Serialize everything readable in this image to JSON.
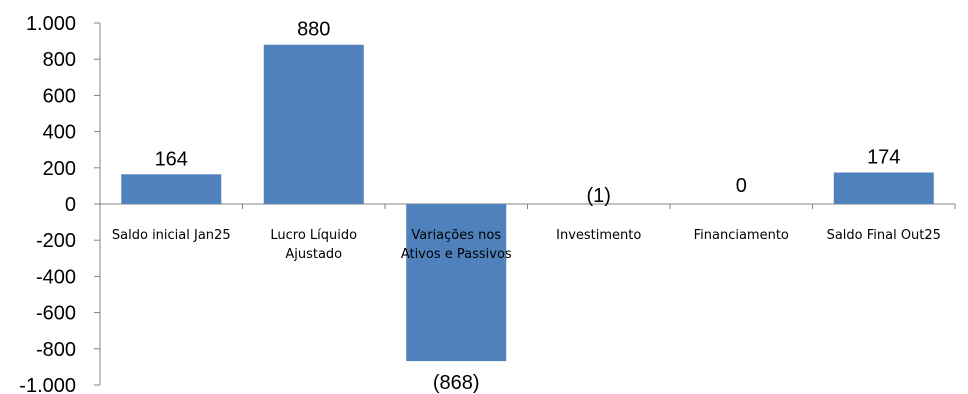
{
  "chart_data": {
    "type": "bar",
    "categories": [
      [
        "Saldo inicial  Jan25"
      ],
      [
        "Lucro Líquido",
        "Ajustado"
      ],
      [
        "Variações nos",
        "Ativos e Passivos"
      ],
      [
        "Investimento"
      ],
      [
        "Financiamento"
      ],
      [
        "Saldo Final Out25"
      ]
    ],
    "values": [
      164,
      880,
      -868,
      -1,
      0,
      174
    ],
    "data_labels": [
      "164",
      "880",
      "(868)",
      "(1)",
      "0",
      "174"
    ],
    "yticks": [
      "1.000",
      "800",
      "600",
      "400",
      "200",
      "0",
      "-200",
      "-400",
      "-600",
      "-800",
      "-1.000"
    ],
    "ytick_values": [
      1000,
      800,
      600,
      400,
      200,
      0,
      -200,
      -400,
      -600,
      -800,
      -1000
    ],
    "ylim": [
      -1000,
      1000
    ],
    "title": "",
    "xlabel": "",
    "ylabel": "",
    "grid": false,
    "legend": "none",
    "bar_color": "#4f81bd",
    "axis_color": "#868686"
  }
}
